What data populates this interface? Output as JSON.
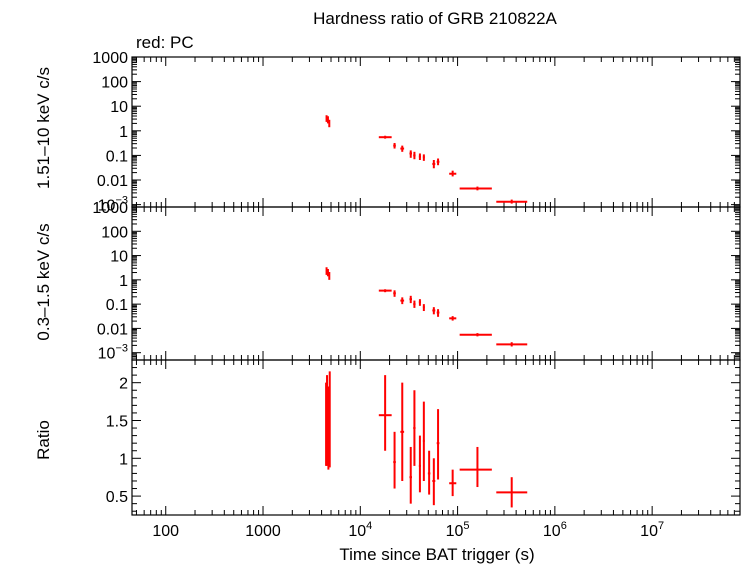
{
  "title": "Hardness ratio of GRB 210822A",
  "subtitle": "red: PC",
  "colors": {
    "data": "#ff0000",
    "axes": "#000000",
    "background": "#ffffff"
  },
  "x_axis": {
    "label": "Time since BAT trigger (s)",
    "scale": "log",
    "range": [
      45,
      80000000
    ],
    "ticks": [
      {
        "value": 100,
        "label": "100"
      },
      {
        "value": 1000,
        "label": "1000"
      },
      {
        "value": 10000,
        "label": "10",
        "sup": "4"
      },
      {
        "value": 100000,
        "label": "10",
        "sup": "5"
      },
      {
        "value": 1000000,
        "label": "10",
        "sup": "6"
      },
      {
        "value": 10000000,
        "label": "10",
        "sup": "7"
      }
    ]
  },
  "chart_data": [
    {
      "type": "scatter",
      "panel": "top",
      "ylabel": "1.51–10 keV c/s",
      "yscale": "log",
      "ylim": [
        0.0008,
        1000
      ],
      "y_ticks": [
        {
          "value": 1000,
          "label": "1000"
        },
        {
          "value": 100,
          "label": "100"
        },
        {
          "value": 10,
          "label": "10"
        },
        {
          "value": 1,
          "label": "1"
        },
        {
          "value": 0.1,
          "label": "0.1"
        },
        {
          "value": 0.01,
          "label": "0.01"
        },
        {
          "value": 0.001,
          "label": "10",
          "sup": "−3"
        }
      ],
      "points": [
        {
          "x": 4500,
          "xlo": 4450,
          "xhi": 4550,
          "y": 3.3,
          "ylo": 2.3,
          "yhi": 4.3
        },
        {
          "x": 4650,
          "xlo": 4600,
          "xhi": 4700,
          "y": 2.9,
          "ylo": 2.0,
          "yhi": 3.9
        },
        {
          "x": 4800,
          "xlo": 4750,
          "xhi": 4850,
          "y": 2.0,
          "ylo": 1.4,
          "yhi": 2.8
        },
        {
          "x": 18000,
          "xlo": 15500,
          "xhi": 21000,
          "y": 0.55,
          "ylo": 0.48,
          "yhi": 0.63
        },
        {
          "x": 22500,
          "xlo": 21800,
          "xhi": 23200,
          "y": 0.25,
          "ylo": 0.19,
          "yhi": 0.32
        },
        {
          "x": 27000,
          "xlo": 25800,
          "xhi": 28200,
          "y": 0.19,
          "ylo": 0.14,
          "yhi": 0.25
        },
        {
          "x": 33000,
          "xlo": 32000,
          "xhi": 34000,
          "y": 0.12,
          "ylo": 0.08,
          "yhi": 0.16
        },
        {
          "x": 36000,
          "xlo": 35000,
          "xhi": 37000,
          "y": 0.1,
          "ylo": 0.07,
          "yhi": 0.14
        },
        {
          "x": 41000,
          "xlo": 40000,
          "xhi": 42000,
          "y": 0.09,
          "ylo": 0.065,
          "yhi": 0.12
        },
        {
          "x": 45000,
          "xlo": 44000,
          "xhi": 46000,
          "y": 0.085,
          "ylo": 0.06,
          "yhi": 0.11
        },
        {
          "x": 57000,
          "xlo": 55000,
          "xhi": 59000,
          "y": 0.045,
          "ylo": 0.03,
          "yhi": 0.065
        },
        {
          "x": 63000,
          "xlo": 61000,
          "xhi": 65000,
          "y": 0.055,
          "ylo": 0.04,
          "yhi": 0.075
        },
        {
          "x": 89000,
          "xlo": 82000,
          "xhi": 97000,
          "y": 0.018,
          "ylo": 0.014,
          "yhi": 0.024
        },
        {
          "x": 160000,
          "xlo": 105000,
          "xhi": 225000,
          "y": 0.0045,
          "ylo": 0.0038,
          "yhi": 0.0054
        },
        {
          "x": 360000,
          "xlo": 250000,
          "xhi": 520000,
          "y": 0.0013,
          "ylo": 0.0011,
          "yhi": 0.0016
        }
      ]
    },
    {
      "type": "scatter",
      "panel": "middle",
      "ylabel": "0.3–1.5 keV c/s",
      "yscale": "log",
      "ylim": [
        0.0005,
        1000
      ],
      "y_ticks": [
        {
          "value": 1000,
          "label": "1000"
        },
        {
          "value": 100,
          "label": "100"
        },
        {
          "value": 10,
          "label": "10"
        },
        {
          "value": 1,
          "label": "1"
        },
        {
          "value": 0.1,
          "label": "0.1"
        },
        {
          "value": 0.01,
          "label": "0.01"
        },
        {
          "value": 0.001,
          "label": "10",
          "sup": "−3"
        }
      ],
      "points": [
        {
          "x": 4500,
          "xlo": 4450,
          "xhi": 4550,
          "y": 2.4,
          "ylo": 1.6,
          "yhi": 3.3
        },
        {
          "x": 4650,
          "xlo": 4600,
          "xhi": 4700,
          "y": 2.0,
          "ylo": 1.4,
          "yhi": 2.8
        },
        {
          "x": 4800,
          "xlo": 4750,
          "xhi": 4850,
          "y": 1.5,
          "ylo": 1.0,
          "yhi": 2.1
        },
        {
          "x": 18000,
          "xlo": 15500,
          "xhi": 21000,
          "y": 0.36,
          "ylo": 0.31,
          "yhi": 0.41
        },
        {
          "x": 22500,
          "xlo": 21800,
          "xhi": 23200,
          "y": 0.28,
          "ylo": 0.2,
          "yhi": 0.37
        },
        {
          "x": 27000,
          "xlo": 25800,
          "xhi": 28200,
          "y": 0.14,
          "ylo": 0.1,
          "yhi": 0.19
        },
        {
          "x": 33000,
          "xlo": 32000,
          "xhi": 34000,
          "y": 0.16,
          "ylo": 0.11,
          "yhi": 0.22
        },
        {
          "x": 36000,
          "xlo": 35000,
          "xhi": 37000,
          "y": 0.1,
          "ylo": 0.07,
          "yhi": 0.14
        },
        {
          "x": 41000,
          "xlo": 40000,
          "xhi": 42000,
          "y": 0.12,
          "ylo": 0.085,
          "yhi": 0.16
        },
        {
          "x": 45000,
          "xlo": 44000,
          "xhi": 46000,
          "y": 0.075,
          "ylo": 0.052,
          "yhi": 0.1
        },
        {
          "x": 57000,
          "xlo": 55000,
          "xhi": 59000,
          "y": 0.055,
          "ylo": 0.038,
          "yhi": 0.075
        },
        {
          "x": 63000,
          "xlo": 61000,
          "xhi": 65000,
          "y": 0.045,
          "ylo": 0.03,
          "yhi": 0.062
        },
        {
          "x": 89000,
          "xlo": 82000,
          "xhi": 97000,
          "y": 0.026,
          "ylo": 0.021,
          "yhi": 0.032
        },
        {
          "x": 160000,
          "xlo": 105000,
          "xhi": 225000,
          "y": 0.0055,
          "ylo": 0.0047,
          "yhi": 0.0064
        },
        {
          "x": 360000,
          "xlo": 250000,
          "xhi": 520000,
          "y": 0.0022,
          "ylo": 0.0018,
          "yhi": 0.0027
        }
      ]
    },
    {
      "type": "scatter",
      "panel": "bottom",
      "ylabel": "Ratio",
      "yscale": "linear",
      "ylim": [
        0.25,
        2.3
      ],
      "y_ticks": [
        {
          "value": 2,
          "label": "2"
        },
        {
          "value": 1.5,
          "label": "1.5"
        },
        {
          "value": 1,
          "label": "1"
        },
        {
          "value": 0.5,
          "label": "0.5"
        }
      ],
      "points": [
        {
          "x": 4450,
          "xlo": 4420,
          "xhi": 4480,
          "y": 1.2,
          "ylo": 0.9,
          "yhi": 2.0
        },
        {
          "x": 4550,
          "xlo": 4520,
          "xhi": 4580,
          "y": 1.35,
          "ylo": 0.9,
          "yhi": 2.1
        },
        {
          "x": 4700,
          "xlo": 4660,
          "xhi": 4740,
          "y": 1.3,
          "ylo": 0.85,
          "yhi": 1.95
        },
        {
          "x": 4850,
          "xlo": 4810,
          "xhi": 4890,
          "y": 1.45,
          "ylo": 0.88,
          "yhi": 2.15
        },
        {
          "x": 18000,
          "xlo": 15500,
          "xhi": 21000,
          "y": 1.57,
          "ylo": 1.1,
          "yhi": 2.1
        },
        {
          "x": 22500,
          "xlo": 21800,
          "xhi": 23200,
          "y": 0.95,
          "ylo": 0.6,
          "yhi": 1.35
        },
        {
          "x": 27000,
          "xlo": 25800,
          "xhi": 28200,
          "y": 1.35,
          "ylo": 0.7,
          "yhi": 2.0
        },
        {
          "x": 33000,
          "xlo": 32000,
          "xhi": 34000,
          "y": 0.75,
          "ylo": 0.4,
          "yhi": 1.15
        },
        {
          "x": 36000,
          "xlo": 35000,
          "xhi": 37000,
          "y": 1.4,
          "ylo": 0.9,
          "yhi": 1.9
        },
        {
          "x": 41000,
          "xlo": 40000,
          "xhi": 42000,
          "y": 0.9,
          "ylo": 0.55,
          "yhi": 1.3
        },
        {
          "x": 45000,
          "xlo": 44000,
          "xhi": 46000,
          "y": 1.23,
          "ylo": 0.7,
          "yhi": 1.75
        },
        {
          "x": 51000,
          "xlo": 49500,
          "xhi": 52500,
          "y": 0.8,
          "ylo": 0.52,
          "yhi": 1.1
        },
        {
          "x": 57000,
          "xlo": 55000,
          "xhi": 59000,
          "y": 0.7,
          "ylo": 0.38,
          "yhi": 1.0
        },
        {
          "x": 63000,
          "xlo": 61000,
          "xhi": 65000,
          "y": 1.2,
          "ylo": 0.72,
          "yhi": 1.65
        },
        {
          "x": 89000,
          "xlo": 82000,
          "xhi": 97000,
          "y": 0.67,
          "ylo": 0.5,
          "yhi": 0.85
        },
        {
          "x": 160000,
          "xlo": 105000,
          "xhi": 225000,
          "y": 0.85,
          "ylo": 0.62,
          "yhi": 1.15
        },
        {
          "x": 360000,
          "xlo": 250000,
          "xhi": 520000,
          "y": 0.55,
          "ylo": 0.35,
          "yhi": 0.75
        }
      ]
    }
  ]
}
